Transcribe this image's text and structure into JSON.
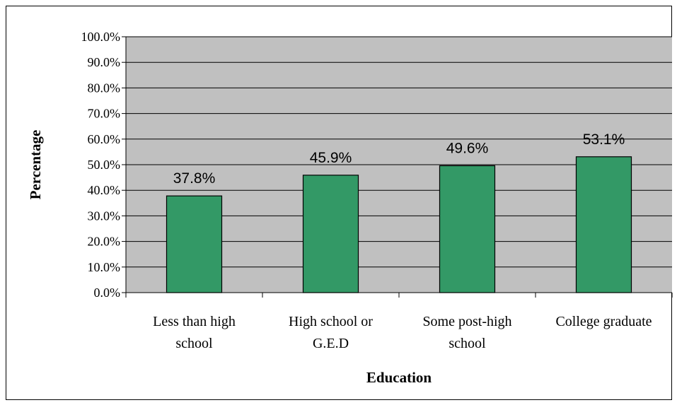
{
  "chart_data": {
    "type": "bar",
    "title": "",
    "xlabel": "Education",
    "ylabel": "Percentage",
    "categories": [
      [
        "Less than high",
        "school"
      ],
      [
        "High school or",
        "G.E.D"
      ],
      [
        "Some post-high",
        "school"
      ],
      [
        "College graduate"
      ]
    ],
    "values": [
      37.8,
      45.9,
      49.6,
      53.1
    ],
    "data_labels": [
      "37.8%",
      "45.9%",
      "49.6%",
      "53.1%"
    ],
    "ylim": [
      0,
      100
    ],
    "yticks": [
      0,
      10,
      20,
      30,
      40,
      50,
      60,
      70,
      80,
      90,
      100
    ],
    "ytick_labels": [
      "0.0%",
      "10.0%",
      "20.0%",
      "30.0%",
      "40.0%",
      "50.0%",
      "60.0%",
      "70.0%",
      "80.0%",
      "90.0%",
      "100.0%"
    ],
    "grid": true,
    "legend": "none",
    "colors": {
      "bar": "#339966",
      "plot_background": "#c0c0c0",
      "gridline": "#000000",
      "border": "#000000"
    }
  }
}
